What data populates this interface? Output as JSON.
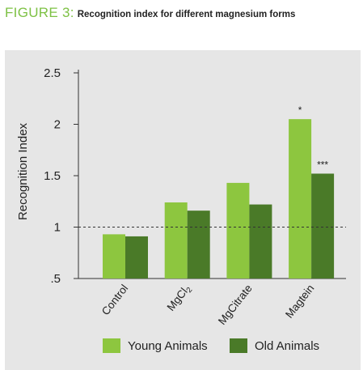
{
  "header": {
    "figure_label": "FIGURE 3:",
    "caption": "Recognition index for different magnesium forms"
  },
  "colors": {
    "young": "#8dc63f",
    "old": "#4a7a28",
    "panel": "#e6e6e6",
    "title_accent": "#7dc144"
  },
  "chart_data": {
    "type": "bar",
    "title": "",
    "ylabel": "Recognition Index",
    "xlabel": "",
    "ylim": [
      0.5,
      2.5
    ],
    "yticks": [
      0.5,
      1,
      1.5,
      2,
      2.5
    ],
    "ytick_labels": [
      ".5",
      "1",
      "1.5",
      "2",
      "2.5"
    ],
    "reference_line": 1,
    "categories": [
      "Control",
      "MgCl2",
      "MgCitrate",
      "Magtein"
    ],
    "category_display": [
      {
        "main": "Control",
        "sub": ""
      },
      {
        "main": "MgCl",
        "sub": "2"
      },
      {
        "main": "MgCitrate",
        "sub": ""
      },
      {
        "main": "Magtein",
        "sub": ""
      }
    ],
    "series": [
      {
        "name": "Young Animals",
        "values": [
          0.93,
          1.24,
          1.43,
          2.05
        ],
        "significance": [
          "",
          "",
          "",
          "*"
        ]
      },
      {
        "name": "Old Animals",
        "values": [
          0.91,
          1.16,
          1.22,
          1.52
        ],
        "significance": [
          "",
          "",
          "",
          "***"
        ]
      }
    ],
    "grid": false,
    "legend_position": "bottom"
  }
}
